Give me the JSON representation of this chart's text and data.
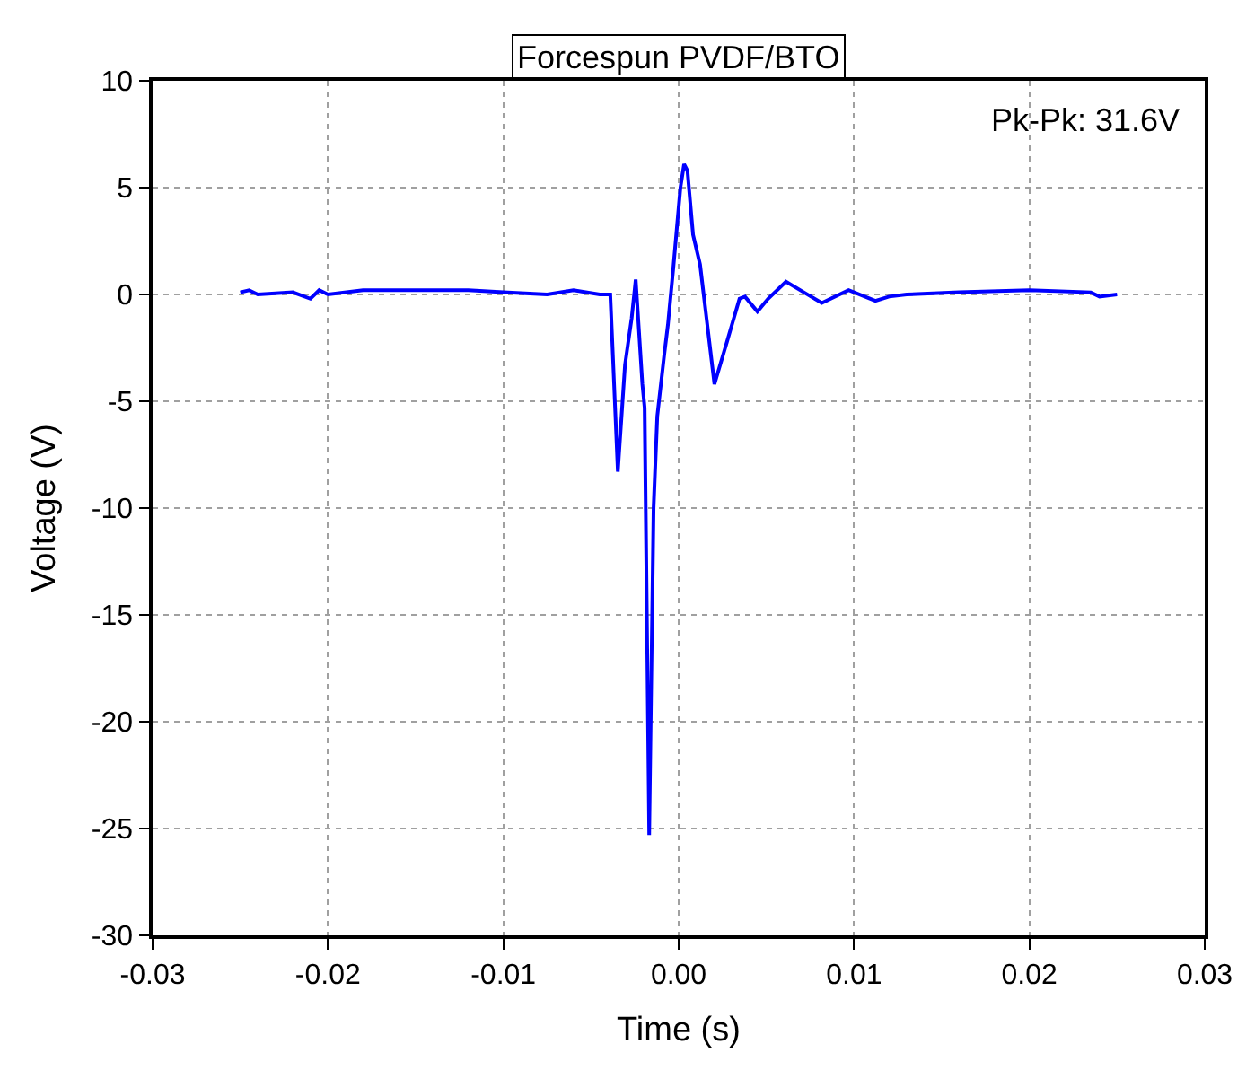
{
  "chart_data": {
    "type": "line",
    "title": "Forcespun PVDF/BTO",
    "xlabel": "Time (s)",
    "ylabel": "Voltage (V)",
    "annotations": [
      "Pk-Pk: 31.6V"
    ],
    "xlim": [
      -0.03,
      0.03
    ],
    "xticks": [
      {
        "value": -0.03,
        "label": "-0.03"
      },
      {
        "value": -0.02,
        "label": "-0.02"
      },
      {
        "value": -0.01,
        "label": "-0.01"
      },
      {
        "value": 0,
        "label": "0.00"
      },
      {
        "value": 0.01,
        "label": "0.01"
      },
      {
        "value": 0.02,
        "label": "0.02"
      },
      {
        "value": 0.03,
        "label": "0.03"
      }
    ],
    "ylim": [
      -30,
      10
    ],
    "yticks": [
      -30,
      -25,
      -20,
      -15,
      -10,
      -5,
      0,
      5,
      10
    ],
    "grid": true,
    "marker": "none",
    "line_style": "solid",
    "series": [
      {
        "color": "#0000ff",
        "x": [
          -0.025,
          -0.0245,
          -0.024,
          -0.022,
          -0.021,
          -0.0205,
          -0.02,
          -0.018,
          -0.015,
          -0.012,
          -0.01,
          -0.0075,
          -0.006,
          -0.0045,
          -0.0039,
          -0.00347,
          -0.00306,
          -0.00268,
          -0.00245,
          -0.00207,
          -0.00194,
          -0.00168,
          -0.00143,
          -0.00122,
          -0.00082,
          -0.00061,
          -0.00031,
          0.0001,
          0.00031,
          0.0005,
          0.00082,
          0.00122,
          0.00204,
          0.00276,
          0.00347,
          0.00378,
          0.00449,
          0.0051,
          0.00612,
          0.00714,
          0.00816,
          0.00969,
          0.01122,
          0.012,
          0.013,
          0.016,
          0.02,
          0.0235,
          0.024,
          0.025
        ],
        "values": [
          0.1,
          0.2,
          0.0,
          0.1,
          -0.2,
          0.2,
          0.0,
          0.2,
          0.2,
          0.2,
          0.1,
          0.0,
          0.2,
          0.0,
          0.0,
          -8.3,
          -3.3,
          -1.1,
          0.7,
          -4.2,
          -5.3,
          -25.3,
          -10.0,
          -5.7,
          -2.8,
          -1.4,
          1.2,
          5.0,
          6.1,
          5.8,
          2.8,
          1.4,
          -4.2,
          -2.2,
          -0.2,
          -0.1,
          -0.8,
          -0.2,
          0.6,
          0.1,
          -0.4,
          0.2,
          -0.3,
          -0.1,
          0.0,
          0.1,
          0.2,
          0.1,
          -0.1,
          0.0
        ]
      }
    ]
  }
}
